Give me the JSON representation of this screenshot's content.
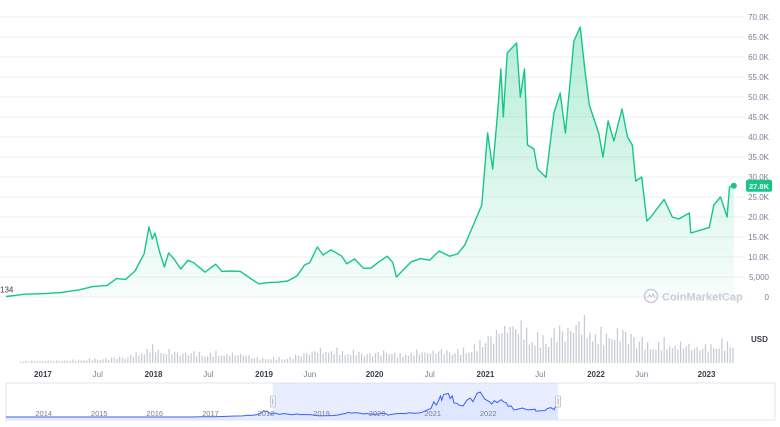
{
  "chart_data": {
    "type": "area",
    "watermark": "CoinMarketCap",
    "currency_label": "USD",
    "first_value_label": "134",
    "current_value_label": "27.8K",
    "colors": {
      "line": "#16c784",
      "badge": "#16c784",
      "volume": "#c8ccd6",
      "navigator_fill": "#dbe3ff",
      "navigator_line": "#3861fb",
      "navigator_window": "#cbd6ff",
      "grid": "#eef0f4",
      "tick_text": "#7a8194",
      "time_text": "#3a3f4b"
    },
    "y_axis": {
      "range": [
        0,
        70000
      ],
      "ticks": [
        "0",
        "5,000",
        "10.0K",
        "15.0K",
        "20.0K",
        "25.0K",
        "30.0K",
        "35.0K",
        "40.0K",
        "45.0K",
        "50.0K",
        "55.0K",
        "60.0K",
        "65.0K",
        "70.0K"
      ],
      "tick_values": [
        0,
        5000,
        10000,
        15000,
        20000,
        25000,
        30000,
        35000,
        40000,
        45000,
        50000,
        55000,
        60000,
        65000,
        70000
      ]
    },
    "x_axis": {
      "range": [
        "2016-09-01",
        "2023-04-05"
      ],
      "ticks": [
        {
          "label": "2017",
          "date": "2017-01-01",
          "bold": true
        },
        {
          "label": "Jul",
          "date": "2017-07-01",
          "bold": false
        },
        {
          "label": "2018",
          "date": "2018-01-01",
          "bold": true
        },
        {
          "label": "Jul",
          "date": "2018-07-01",
          "bold": false
        },
        {
          "label": "2019",
          "date": "2019-01-01",
          "bold": true
        },
        {
          "label": "Jun",
          "date": "2019-06-01",
          "bold": false
        },
        {
          "label": "2020",
          "date": "2020-01-01",
          "bold": true
        },
        {
          "label": "Jul",
          "date": "2020-07-01",
          "bold": false
        },
        {
          "label": "2021",
          "date": "2021-01-01",
          "bold": true
        },
        {
          "label": "Jul",
          "date": "2021-07-01",
          "bold": false
        },
        {
          "label": "2022",
          "date": "2022-01-01",
          "bold": true
        },
        {
          "label": "Jun",
          "date": "2022-06-01",
          "bold": false
        },
        {
          "label": "2023",
          "date": "2023-01-01",
          "bold": true
        }
      ]
    },
    "series": [
      {
        "points": [
          [
            "2016-09-01",
            134
          ],
          [
            "2016-10-01",
            400
          ],
          [
            "2016-11-01",
            700
          ],
          [
            "2016-12-15",
            800
          ],
          [
            "2017-01-15",
            900
          ],
          [
            "2017-03-01",
            1100
          ],
          [
            "2017-05-01",
            1800
          ],
          [
            "2017-06-15",
            2600
          ],
          [
            "2017-08-01",
            2900
          ],
          [
            "2017-09-01",
            4600
          ],
          [
            "2017-10-01",
            4400
          ],
          [
            "2017-11-01",
            6500
          ],
          [
            "2017-12-01",
            10800
          ],
          [
            "2017-12-17",
            17500
          ],
          [
            "2017-12-28",
            14500
          ],
          [
            "2018-01-06",
            16000
          ],
          [
            "2018-01-20",
            11500
          ],
          [
            "2018-02-06",
            7500
          ],
          [
            "2018-02-20",
            11000
          ],
          [
            "2018-03-10",
            9500
          ],
          [
            "2018-04-01",
            7000
          ],
          [
            "2018-04-25",
            9200
          ],
          [
            "2018-05-15",
            8500
          ],
          [
            "2018-06-20",
            6200
          ],
          [
            "2018-07-25",
            8200
          ],
          [
            "2018-08-15",
            6400
          ],
          [
            "2018-09-15",
            6500
          ],
          [
            "2018-10-15",
            6400
          ],
          [
            "2018-11-20",
            4500
          ],
          [
            "2018-12-15",
            3300
          ],
          [
            "2019-01-15",
            3600
          ],
          [
            "2019-02-15",
            3700
          ],
          [
            "2019-03-20",
            4000
          ],
          [
            "2019-04-20",
            5300
          ],
          [
            "2019-05-15",
            8000
          ],
          [
            "2019-06-01",
            8600
          ],
          [
            "2019-06-26",
            12500
          ],
          [
            "2019-07-15",
            10500
          ],
          [
            "2019-08-10",
            11800
          ],
          [
            "2019-09-15",
            10200
          ],
          [
            "2019-10-01",
            8300
          ],
          [
            "2019-10-27",
            9500
          ],
          [
            "2019-11-25",
            7200
          ],
          [
            "2019-12-20",
            7200
          ],
          [
            "2020-01-15",
            8800
          ],
          [
            "2020-02-12",
            10200
          ],
          [
            "2020-03-01",
            8600
          ],
          [
            "2020-03-13",
            5000
          ],
          [
            "2020-04-05",
            6800
          ],
          [
            "2020-05-01",
            8800
          ],
          [
            "2020-06-01",
            9600
          ],
          [
            "2020-07-01",
            9200
          ],
          [
            "2020-08-01",
            11500
          ],
          [
            "2020-09-05",
            10200
          ],
          [
            "2020-10-01",
            10800
          ],
          [
            "2020-10-25",
            13000
          ],
          [
            "2020-11-25",
            18500
          ],
          [
            "2020-12-20",
            23000
          ],
          [
            "2021-01-08",
            41000
          ],
          [
            "2021-01-25",
            32000
          ],
          [
            "2021-02-10",
            46000
          ],
          [
            "2021-02-21",
            57000
          ],
          [
            "2021-03-01",
            45000
          ],
          [
            "2021-03-14",
            61000
          ],
          [
            "2021-04-14",
            63500
          ],
          [
            "2021-04-26",
            50000
          ],
          [
            "2021-05-10",
            57000
          ],
          [
            "2021-05-20",
            38000
          ],
          [
            "2021-06-10",
            37000
          ],
          [
            "2021-06-22",
            32000
          ],
          [
            "2021-07-20",
            29900
          ],
          [
            "2021-08-15",
            46000
          ],
          [
            "2021-09-05",
            51000
          ],
          [
            "2021-09-22",
            41000
          ],
          [
            "2021-10-20",
            64000
          ],
          [
            "2021-11-10",
            67500
          ],
          [
            "2021-11-25",
            57000
          ],
          [
            "2021-12-10",
            48000
          ],
          [
            "2022-01-10",
            41000
          ],
          [
            "2022-01-24",
            35000
          ],
          [
            "2022-02-10",
            44000
          ],
          [
            "2022-03-01",
            39000
          ],
          [
            "2022-03-28",
            47000
          ],
          [
            "2022-04-15",
            40000
          ],
          [
            "2022-05-01",
            38000
          ],
          [
            "2022-05-12",
            29000
          ],
          [
            "2022-06-01",
            30000
          ],
          [
            "2022-06-18",
            19000
          ],
          [
            "2022-07-01",
            20000
          ],
          [
            "2022-08-14",
            24400
          ],
          [
            "2022-09-10",
            20000
          ],
          [
            "2022-10-01",
            19500
          ],
          [
            "2022-11-05",
            21000
          ],
          [
            "2022-11-10",
            16000
          ],
          [
            "2022-12-15",
            16800
          ],
          [
            "2023-01-10",
            17400
          ],
          [
            "2023-01-25",
            23000
          ],
          [
            "2023-02-16",
            25000
          ],
          [
            "2023-03-10",
            20000
          ],
          [
            "2023-03-18",
            27500
          ],
          [
            "2023-04-01",
            27800
          ]
        ]
      }
    ],
    "navigator": {
      "ticks": [
        "2014",
        "2015",
        "2016",
        "2017",
        "2018",
        "2019",
        "2020",
        "2021",
        "2022"
      ],
      "tick_dates": [
        "2014-01-01",
        "2015-01-01",
        "2016-01-01",
        "2017-01-01",
        "2018-01-01",
        "2019-01-01",
        "2020-01-01",
        "2021-01-01",
        "2022-01-01"
      ],
      "range": [
        "2013-04-28",
        "2027-03-01"
      ],
      "selection": [
        "2018-02-15",
        "2023-04-05"
      ]
    }
  }
}
